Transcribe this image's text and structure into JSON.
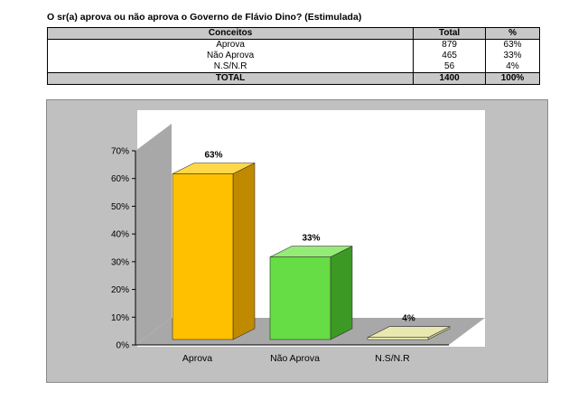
{
  "title": "O sr(a) aprova ou não aprova o Governo de Flávio Dino? (Estimulada)",
  "table": {
    "headers": [
      "Conceitos",
      "Total",
      "%"
    ],
    "rows": [
      {
        "label": "Aprova",
        "total": "879",
        "pct": "63%"
      },
      {
        "label": "Não Aprova",
        "total": "465",
        "pct": "33%"
      },
      {
        "label": "N.S/N.R",
        "total": "56",
        "pct": "4%"
      }
    ],
    "footer": {
      "label": "TOTAL",
      "total": "1400",
      "pct": "100%"
    }
  },
  "chart_data": {
    "type": "bar",
    "categories": [
      "Aprova",
      "Não Aprova",
      "N.S/N.R"
    ],
    "values": [
      63,
      33,
      4
    ],
    "data_labels": [
      "63%",
      "33%",
      "4%"
    ],
    "y_ticks": [
      "0%",
      "10%",
      "20%",
      "30%",
      "40%",
      "50%",
      "60%",
      "70%"
    ],
    "ylim": [
      0,
      70
    ],
    "grid": false,
    "colors": {
      "bars": [
        "#ffc000",
        "#66dd44",
        "#ffffc0"
      ],
      "bar_sides": [
        "#c08a00",
        "#3c9a24",
        "#c8c890"
      ],
      "bar_tops": [
        "#ffd84a",
        "#94ec76",
        "#e8e8b0"
      ],
      "walls": "#a8a8a8",
      "plot_bg": "#ffffff",
      "panel_bg": "#c0c0c0"
    }
  }
}
